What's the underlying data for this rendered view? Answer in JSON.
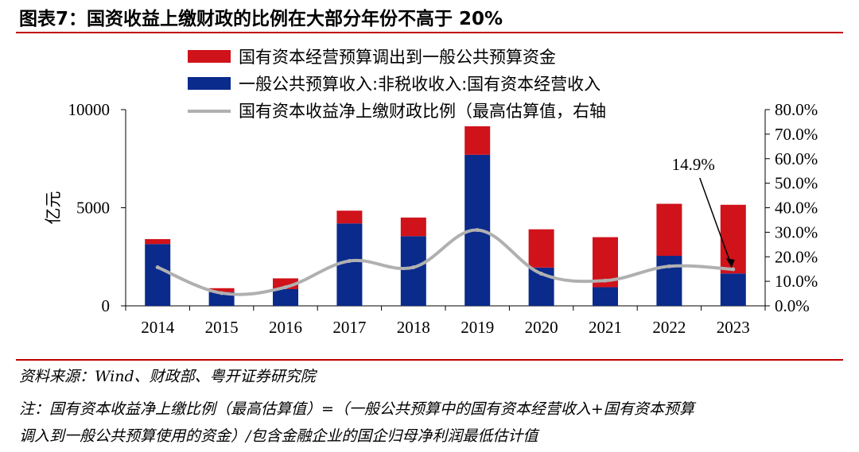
{
  "figure": {
    "title": "图表7：国资收益上缴财政的比例在大部分年份不高于 20%",
    "source": "资料来源：Wind、财政部、粤开证券研究院",
    "note_line1": "注：国有资本收益净上缴比例（最高估算值）=（一般公共预算中的国有资本经营收入+国有资本预算",
    "note_line2": "调入到一般公共预算使用的资金）/包含金融企业的国企归母净利润最低估计值"
  },
  "chart_data": {
    "type": "bar",
    "stacked": true,
    "categories": [
      "2014",
      "2015",
      "2016",
      "2017",
      "2018",
      "2019",
      "2020",
      "2021",
      "2022",
      "2023"
    ],
    "series": [
      {
        "name": "一般公共预算收入:非税收收入:国有资本经营收入",
        "kind": "bar",
        "axis": "left",
        "color": "#0a2a8c",
        "values": [
          3150,
          700,
          850,
          4200,
          3550,
          7700,
          1950,
          950,
          2550,
          1650
        ]
      },
      {
        "name": "国有资本经营预算调出到一般公共预算资金",
        "kind": "bar",
        "axis": "left",
        "color": "#d0121b",
        "values": [
          250,
          200,
          550,
          650,
          950,
          1450,
          1950,
          2550,
          2650,
          3500
        ]
      },
      {
        "name": "国有资本收益净上缴财政比例（最高估算值，右轴",
        "kind": "line",
        "axis": "right",
        "color": "#b0b0b0",
        "values": [
          15.7,
          5.2,
          7.6,
          18.3,
          15.7,
          30.9,
          13.1,
          10.3,
          16.1,
          14.9
        ]
      }
    ],
    "ylabel": "亿元",
    "ylim": [
      0,
      10000
    ],
    "yticks": [
      "0",
      "5000",
      "10000"
    ],
    "y2lim": [
      0,
      80
    ],
    "y2ticks": [
      "0.0%",
      "10.0%",
      "20.0%",
      "30.0%",
      "40.0%",
      "50.0%",
      "60.0%",
      "70.0%",
      "80.0%"
    ],
    "annotation": {
      "text": "14.9%",
      "category": "2023",
      "value": 14.9
    },
    "legend_order": [
      1,
      0,
      2
    ],
    "legend_position": "top",
    "grid": false
  }
}
